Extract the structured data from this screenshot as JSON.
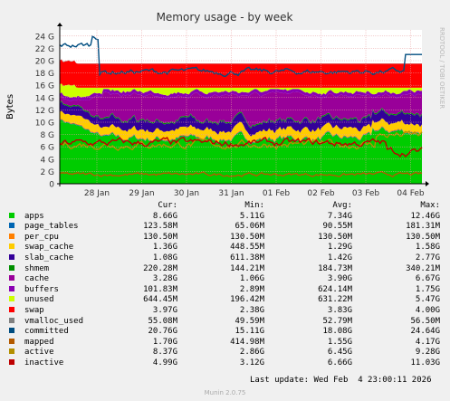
{
  "chart_data": {
    "type": "area",
    "title": "Memory usage - by week",
    "ylabel": "Bytes",
    "side_label": "RRDTOOL / TOBI OETIKER",
    "x_ticks": [
      "28 Jan",
      "29 Jan",
      "30 Jan",
      "31 Jan",
      "01 Feb",
      "02 Feb",
      "03 Feb",
      "04 Feb"
    ],
    "y_ticks": [
      "0",
      "2 G",
      "4 G",
      "6 G",
      "8 G",
      "10 G",
      "12 G",
      "14 G",
      "16 G",
      "18 G",
      "20 G",
      "22 G",
      "24 G"
    ],
    "ylim": [
      0,
      25
    ],
    "grid": true,
    "column_headers": {
      "cur": "Cur:",
      "min": "Min:",
      "avg": "Avg:",
      "max": "Max:"
    },
    "series": [
      {
        "name": "apps",
        "color": "#00cc00",
        "cur": "8.66G",
        "min": "5.11G",
        "avg": "7.34G",
        "max": "12.46G"
      },
      {
        "name": "page_tables",
        "color": "#0066b3",
        "cur": "123.58M",
        "min": "65.06M",
        "avg": "90.55M",
        "max": "181.31M"
      },
      {
        "name": "per_cpu",
        "color": "#ff8000",
        "cur": "130.50M",
        "min": "130.50M",
        "avg": "130.50M",
        "max": "130.50M"
      },
      {
        "name": "swap_cache",
        "color": "#ffcc00",
        "cur": "1.36G",
        "min": "448.55M",
        "avg": "1.29G",
        "max": "1.58G"
      },
      {
        "name": "slab_cache",
        "color": "#330099",
        "cur": "1.08G",
        "min": "611.38M",
        "avg": "1.42G",
        "max": "2.77G"
      },
      {
        "name": "shmem",
        "color": "#008f00",
        "cur": "220.28M",
        "min": "144.21M",
        "avg": "184.73M",
        "max": "340.21M"
      },
      {
        "name": "cache",
        "color": "#990099",
        "cur": "3.28G",
        "min": "1.06G",
        "avg": "3.90G",
        "max": "6.67G"
      },
      {
        "name": "buffers",
        "color": "#8a00b3",
        "cur": "101.83M",
        "min": "2.89M",
        "avg": "624.14M",
        "max": "1.75G"
      },
      {
        "name": "unused",
        "color": "#ccff00",
        "cur": "644.45M",
        "min": "196.42M",
        "avg": "631.22M",
        "max": "5.47G"
      },
      {
        "name": "swap",
        "color": "#ff0000",
        "cur": "3.97G",
        "min": "2.38G",
        "avg": "3.83G",
        "max": "4.00G"
      },
      {
        "name": "vmalloc_used",
        "color": "#808080",
        "cur": "55.08M",
        "min": "49.59M",
        "avg": "52.79M",
        "max": "56.50M"
      },
      {
        "name": "committed",
        "color": "#004d80",
        "cur": "20.76G",
        "min": "15.11G",
        "avg": "18.08G",
        "max": "24.64G"
      },
      {
        "name": "mapped",
        "color": "#b35a00",
        "cur": "1.70G",
        "min": "414.98M",
        "avg": "1.55G",
        "max": "4.17G"
      },
      {
        "name": "active",
        "color": "#b38f00",
        "cur": "8.37G",
        "min": "2.86G",
        "avg": "6.45G",
        "max": "9.28G"
      },
      {
        "name": "inactive",
        "color": "#bd0000",
        "cur": "4.99G",
        "min": "3.12G",
        "avg": "6.66G",
        "max": "11.03G"
      }
    ],
    "colors": {
      "background": "#f0f0f0",
      "plot_background": "#ffffff",
      "grid": "#e8a0a0",
      "axis": "#000000"
    }
  },
  "footer": {
    "last_update": "Last update: Wed Feb  4 23:00:11 2026",
    "version": "Munin 2.0.75"
  }
}
